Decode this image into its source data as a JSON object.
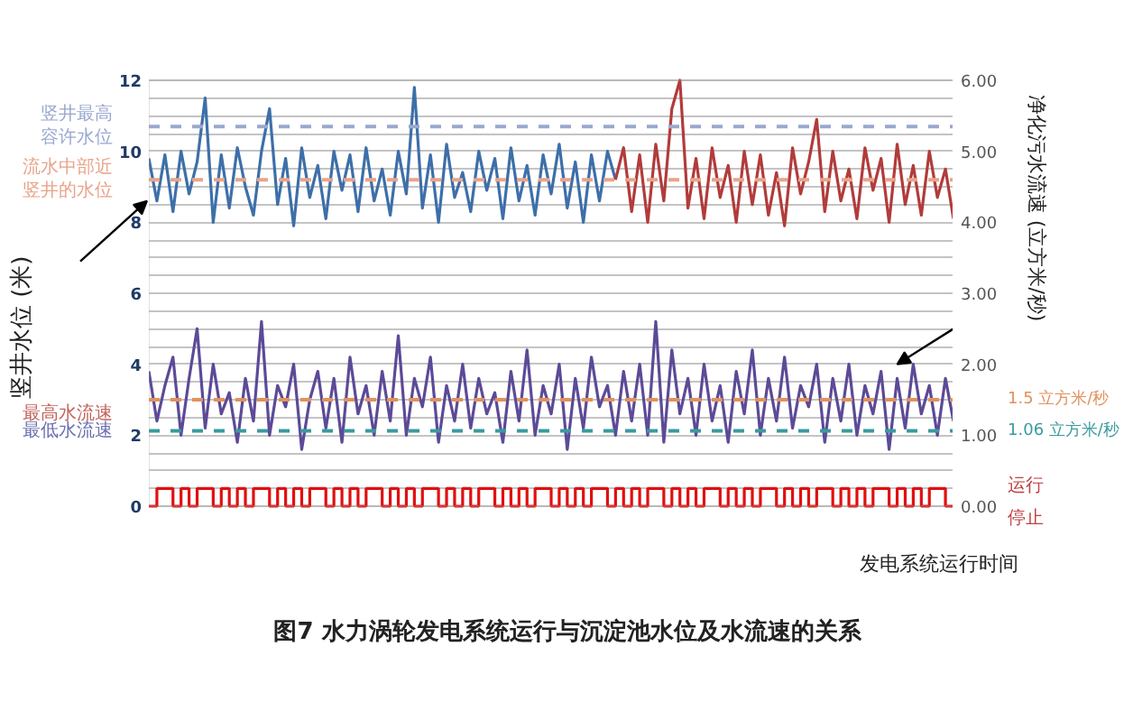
{
  "chart_data": {
    "type": "line",
    "title": "图7 水力涡轮发电系统运行与沉淀池水位及水流速的关系",
    "xlabel": "发电系统运行时间",
    "ylabel": "竖井水位 (米)",
    "y2label": "净化污水流速 (立方米/秒)",
    "categories": [
      null,
      null,
      null,
      null,
      null,
      null,
      null,
      null,
      null,
      null,
      null,
      null,
      null,
      null,
      null,
      null,
      null,
      null,
      null,
      null,
      null,
      null,
      null,
      null,
      null,
      null,
      null,
      null,
      null,
      null,
      null,
      null,
      null,
      null,
      null,
      null,
      null,
      null,
      null,
      null,
      null,
      null,
      null,
      null,
      null,
      null,
      null,
      null,
      null,
      null,
      null,
      null,
      null,
      null,
      null,
      null,
      null,
      null,
      null,
      null,
      null,
      null,
      null,
      null,
      null,
      null,
      null,
      null,
      null,
      null,
      null,
      null,
      null,
      null,
      null,
      null,
      null,
      null,
      null,
      null,
      null,
      null,
      null,
      null,
      null,
      null,
      null,
      null,
      null,
      null,
      null,
      null,
      null,
      null,
      null,
      null,
      null,
      null,
      null,
      null,
      null
    ],
    "series": [
      {
        "color": "#3d6fa9",
        "values": [
          9.8,
          8.6,
          9.9,
          8.3,
          10.0,
          8.8,
          9.7,
          11.5,
          8.0,
          9.9,
          8.4,
          10.1,
          9.0,
          8.2,
          10.0,
          11.2,
          8.5,
          9.8,
          7.9,
          10.1,
          8.7,
          9.6,
          8.1,
          10.0,
          8.9,
          9.9,
          8.3,
          10.1,
          8.6,
          9.5,
          8.2,
          10.0,
          8.8,
          11.8,
          8.4,
          9.9,
          8.0,
          10.2,
          8.7,
          9.4,
          8.3,
          10.0,
          8.9,
          9.8,
          8.1,
          10.1,
          8.6,
          9.6,
          8.2,
          9.9,
          8.8,
          10.2,
          8.4,
          9.7,
          8.0,
          9.9,
          8.6,
          10.0,
          9.2,
          null,
          null,
          null,
          null,
          null,
          null,
          null,
          null,
          null,
          null,
          null,
          null,
          null,
          null,
          null,
          null,
          null,
          null,
          null,
          null,
          null,
          null,
          null,
          null,
          null,
          null,
          null,
          null,
          null,
          null,
          null,
          null,
          null,
          null,
          null,
          null,
          null,
          null,
          null,
          null,
          null,
          null
        ]
      },
      {
        "color": "#b23b3b",
        "values": [
          null,
          null,
          null,
          null,
          null,
          null,
          null,
          null,
          null,
          null,
          null,
          null,
          null,
          null,
          null,
          null,
          null,
          null,
          null,
          null,
          null,
          null,
          null,
          null,
          null,
          null,
          null,
          null,
          null,
          null,
          null,
          null,
          null,
          null,
          null,
          null,
          null,
          null,
          null,
          null,
          null,
          null,
          null,
          null,
          null,
          null,
          null,
          null,
          null,
          null,
          null,
          null,
          null,
          null,
          null,
          null,
          null,
          null,
          9.2,
          10.1,
          8.3,
          9.9,
          8.0,
          10.2,
          8.6,
          11.2,
          12.0,
          8.4,
          9.8,
          8.1,
          10.1,
          8.7,
          9.6,
          8.0,
          10.0,
          8.5,
          9.9,
          8.2,
          9.4,
          7.9,
          10.1,
          8.8,
          9.7,
          10.9,
          8.3,
          10.0,
          8.6,
          9.5,
          8.1,
          10.1,
          8.9,
          9.8,
          8.0,
          10.2,
          8.5,
          9.6,
          8.2,
          10.0,
          8.7,
          9.5,
          8.1
        ]
      },
      {
        "color": "#5c4a97",
        "axis": "y2",
        "values": [
          1.9,
          1.2,
          1.7,
          2.1,
          1.0,
          1.8,
          2.5,
          1.1,
          2.0,
          1.3,
          1.6,
          0.9,
          1.8,
          1.2,
          2.6,
          1.0,
          1.7,
          1.4,
          2.0,
          0.8,
          1.5,
          1.9,
          1.1,
          1.8,
          0.9,
          2.1,
          1.3,
          1.7,
          1.0,
          1.9,
          1.2,
          2.4,
          1.0,
          1.8,
          1.4,
          2.1,
          0.9,
          1.7,
          1.2,
          2.0,
          1.1,
          1.8,
          1.3,
          1.6,
          0.9,
          1.9,
          1.2,
          2.2,
          1.0,
          1.7,
          1.3,
          2.0,
          0.8,
          1.8,
          1.1,
          2.1,
          1.4,
          1.7,
          1.0,
          1.9,
          1.2,
          2.0,
          1.0,
          2.6,
          0.9,
          2.2,
          1.3,
          1.8,
          1.0,
          2.0,
          1.2,
          1.7,
          0.9,
          1.9,
          1.3,
          2.2,
          1.0,
          1.8,
          1.2,
          2.1,
          1.1,
          1.7,
          1.4,
          2.0,
          0.9,
          1.8,
          1.2,
          2.0,
          1.0,
          1.7,
          1.3,
          1.9,
          0.8,
          1.8,
          1.1,
          2.0,
          1.3,
          1.7,
          1.0,
          1.8,
          1.2
        ]
      },
      {
        "type": "step",
        "color": "#e01010",
        "values": [
          0,
          0.5,
          0.5,
          0,
          0.5,
          0,
          0.5,
          0.5,
          0,
          0.5,
          0,
          0.5,
          0,
          0.5,
          0.5,
          0,
          0.5,
          0,
          0.5,
          0,
          0.5,
          0.5,
          0,
          0.5,
          0,
          0.5,
          0,
          0.5,
          0.5,
          0,
          0.5,
          0,
          0.5,
          0,
          0.5,
          0.5,
          0,
          0.5,
          0,
          0.5,
          0,
          0.5,
          0.5,
          0,
          0.5,
          0,
          0.5,
          0,
          0.5,
          0.5,
          0,
          0.5,
          0,
          0.5,
          0,
          0.5,
          0.5,
          0,
          0.5,
          0,
          0.5,
          0,
          0.5,
          0.5,
          0,
          0.5,
          0,
          0.5,
          0,
          0.5,
          0.5,
          0,
          0.5,
          0,
          0.5,
          0,
          0.5,
          0.5,
          0,
          0.5,
          0,
          0.5,
          0,
          0.5,
          0.5,
          0,
          0.5,
          0,
          0.5,
          0,
          0.5,
          0.5,
          0,
          0.5,
          0,
          0.5,
          0,
          0.5,
          0.5,
          0,
          0
        ]
      }
    ],
    "ylim": [
      0,
      12
    ],
    "yticks": [
      0,
      2,
      4,
      6,
      8,
      10,
      12
    ],
    "y2lim": [
      0,
      6
    ],
    "y2ticks": [
      {
        "value": 0,
        "label": "0.00"
      },
      {
        "value": 1,
        "label": "1.00"
      },
      {
        "value": 2,
        "label": "2.00"
      },
      {
        "value": 3,
        "label": "3.00"
      },
      {
        "value": 4,
        "label": "4.00"
      },
      {
        "value": 5,
        "label": "5.00"
      },
      {
        "value": 6,
        "label": "6.00"
      }
    ],
    "ref_lines": [
      {
        "axis": "y",
        "value": 10.7,
        "label": "竖井最高容许水位",
        "color": "#9aa8d0",
        "line_style": "dashed"
      },
      {
        "axis": "y",
        "value": 9.2,
        "label": "流水中部近竖井的水位",
        "color": "#e8a48a",
        "line_style": "dashed"
      },
      {
        "axis": "y2",
        "value": 1.5,
        "label": "1.5 立方米/秒",
        "color": "#e0925e",
        "line_style": "dashed"
      },
      {
        "axis": "y2",
        "value": 1.06,
        "label": "1.06 立方米/秒",
        "color": "#3a9a9e",
        "line_style": "dashed"
      }
    ],
    "annotations": [
      "最高水流速",
      "最低水流速",
      "运行",
      "停止"
    ],
    "grid": "y",
    "tick_labels": "y",
    "marker": "none",
    "line_style": "solid"
  }
}
